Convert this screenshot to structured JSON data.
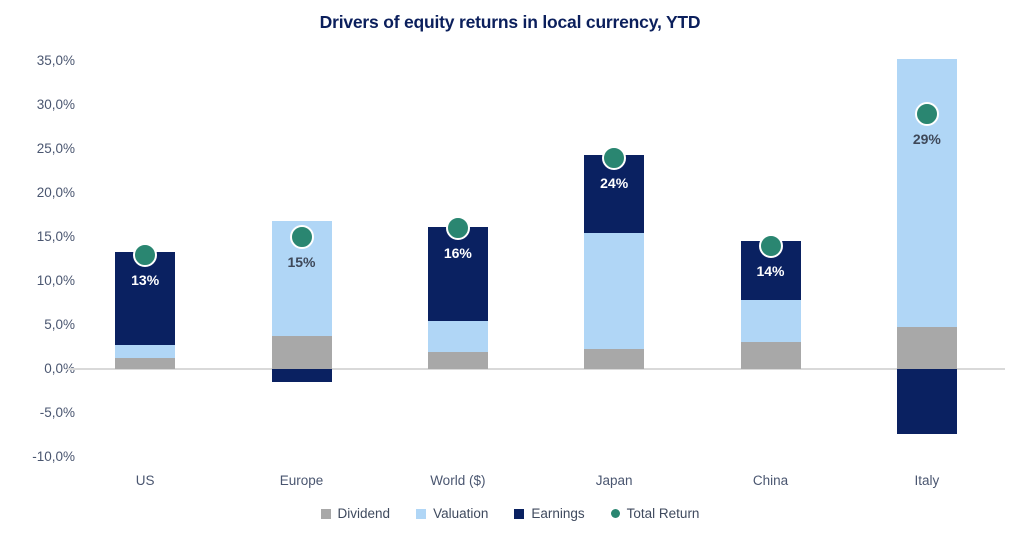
{
  "title": "Drivers of equity returns in local currency, YTD",
  "colors": {
    "title": "#0b1f5c",
    "axis_text": "#4a5670",
    "zero_line": "#d9d9d9",
    "legend_text": "#3f4a5e",
    "dividend": "#a8a8a8",
    "valuation": "#b0d6f6",
    "earnings": "#0a2161",
    "total_return": "#2a8671"
  },
  "chart_data": {
    "type": "bar",
    "stacked": true,
    "title": "Drivers of equity returns in local currency, YTD",
    "xlabel": "",
    "ylabel": "",
    "ylim": [
      -10,
      35
    ],
    "grid": false,
    "legend_position": "bottom",
    "categories": [
      "US",
      "Europe",
      "World ($)",
      "Japan",
      "China",
      "Italy"
    ],
    "series": [
      {
        "name": "Dividend",
        "color": "#a8a8a8",
        "values": [
          1.3,
          3.7,
          1.9,
          2.3,
          3.1,
          4.8
        ]
      },
      {
        "name": "Valuation",
        "color": "#b0d6f6",
        "values": [
          1.4,
          13.1,
          3.6,
          13.2,
          4.7,
          30.4
        ]
      },
      {
        "name": "Earnings",
        "color": "#0a2161",
        "values": [
          10.6,
          -1.5,
          10.6,
          8.8,
          6.7,
          -7.4
        ]
      }
    ],
    "markers": {
      "name": "Total Return",
      "color": "#2a8671",
      "values": [
        13,
        15,
        16,
        24,
        14,
        29
      ]
    },
    "data_labels": [
      "13%",
      "15%",
      "16%",
      "24%",
      "14%",
      "29%"
    ],
    "data_label_colors": [
      "#ffffff",
      "#3e4859",
      "#ffffff",
      "#ffffff",
      "#ffffff",
      "#3e4859"
    ],
    "y_ticks": [
      {
        "value": 35,
        "label": "35,0%"
      },
      {
        "value": 30,
        "label": "30,0%"
      },
      {
        "value": 25,
        "label": "25,0%"
      },
      {
        "value": 20,
        "label": "20,0%"
      },
      {
        "value": 15,
        "label": "15,0%"
      },
      {
        "value": 10,
        "label": "10,0%"
      },
      {
        "value": 5,
        "label": "5,0%"
      },
      {
        "value": 0,
        "label": "0,0%"
      },
      {
        "value": -5,
        "label": "-5,0%"
      },
      {
        "value": -10,
        "label": "-10,0%"
      }
    ]
  },
  "legend": {
    "items": [
      {
        "label": "Dividend",
        "color": "#a8a8a8",
        "shape": "square"
      },
      {
        "label": "Valuation",
        "color": "#b0d6f6",
        "shape": "square"
      },
      {
        "label": "Earnings",
        "color": "#0a2161",
        "shape": "square"
      },
      {
        "label": "Total Return",
        "color": "#2a8671",
        "shape": "circle"
      }
    ]
  }
}
